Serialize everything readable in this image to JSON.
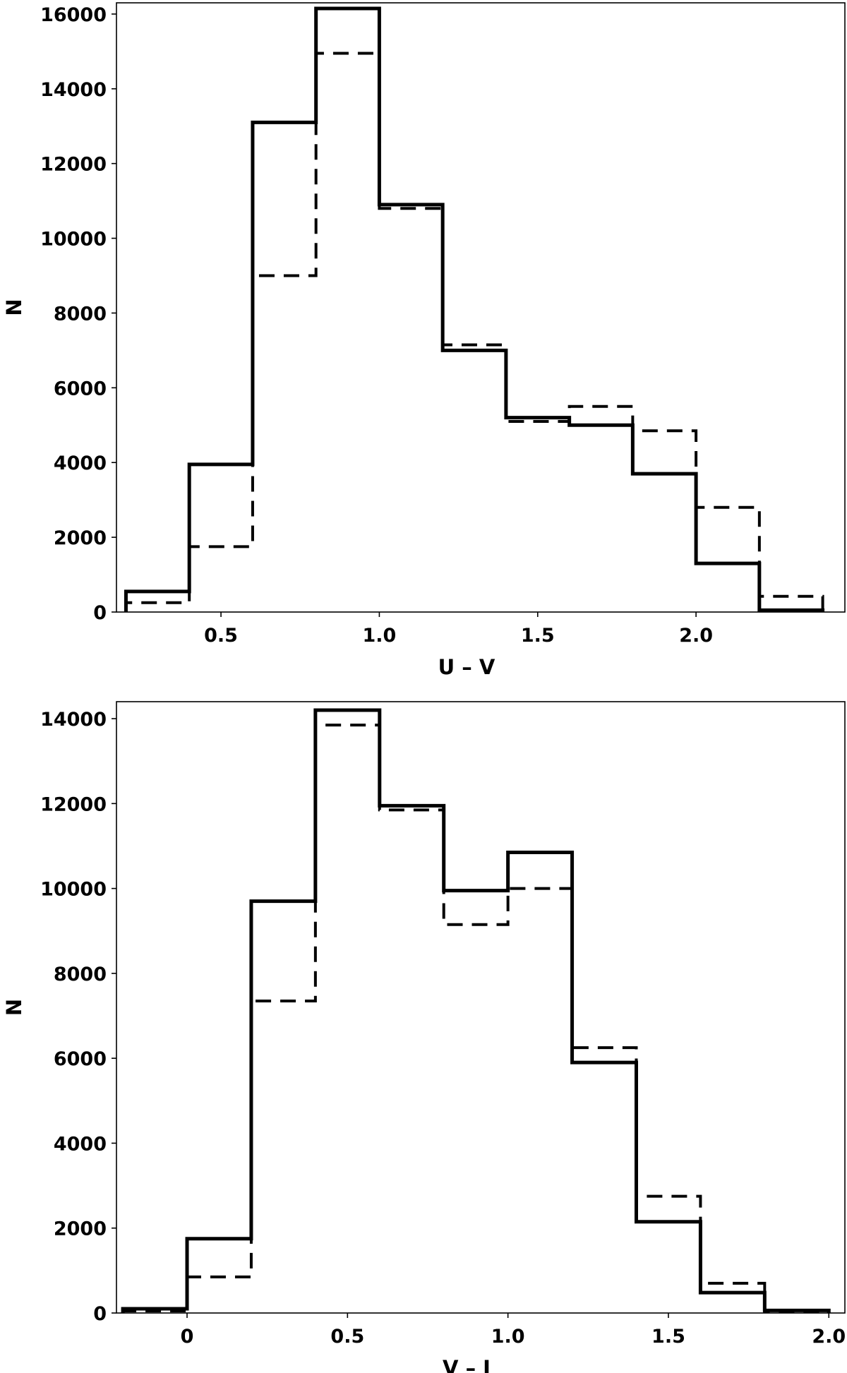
{
  "chart_data": [
    {
      "type": "histogram",
      "xlabel": "U –  V",
      "ylabel": "N",
      "xlim": [
        0.17,
        2.47
      ],
      "ylim": [
        0,
        16300
      ],
      "xticks": [
        0.5,
        1.0,
        1.5,
        2.0
      ],
      "xtick_labels": [
        "0.5",
        "1.0",
        "1.5",
        "2.0"
      ],
      "yticks": [
        0,
        2000,
        4000,
        6000,
        8000,
        10000,
        12000,
        14000,
        16000
      ],
      "ytick_labels": [
        "0",
        "2000",
        "4000",
        "6000",
        "8000",
        "10000",
        "12000",
        "14000",
        "16000"
      ],
      "bin_edges": [
        0.2,
        0.4,
        0.6,
        0.8,
        1.0,
        1.2,
        1.4,
        1.6,
        1.8,
        2.0,
        2.2,
        2.4
      ],
      "series": [
        {
          "style": "solid",
          "values": [
            550,
            3950,
            13100,
            16150,
            10900,
            7000,
            5200,
            5000,
            3700,
            1300,
            50
          ]
        },
        {
          "style": "dashed",
          "values": [
            250,
            1750,
            9000,
            14950,
            10800,
            7150,
            5100,
            5500,
            4850,
            2800,
            420
          ]
        }
      ],
      "grid": false,
      "legend": null
    },
    {
      "type": "histogram",
      "xlabel": "V –  J",
      "ylabel": "N",
      "xlim": [
        -0.22,
        2.05
      ],
      "ylim": [
        0,
        14400
      ],
      "xticks": [
        0,
        0.5,
        1.0,
        1.5,
        2.0
      ],
      "xtick_labels": [
        "0",
        "0.5",
        "1.0",
        "1.5",
        "2.0"
      ],
      "yticks": [
        0,
        2000,
        4000,
        6000,
        8000,
        10000,
        12000,
        14000
      ],
      "ytick_labels": [
        "0",
        "2000",
        "4000",
        "6000",
        "8000",
        "10000",
        "12000",
        "14000"
      ],
      "bin_edges": [
        -0.2,
        0.0,
        0.2,
        0.4,
        0.6,
        0.8,
        1.0,
        1.2,
        1.4,
        1.6,
        1.8,
        2.0
      ],
      "series": [
        {
          "style": "solid",
          "values": [
            100,
            1750,
            9700,
            14200,
            11950,
            9950,
            10850,
            5900,
            2150,
            480,
            60
          ]
        },
        {
          "style": "dashed",
          "values": [
            50,
            850,
            7350,
            13850,
            11850,
            9150,
            10000,
            6250,
            2750,
            700,
            40
          ]
        }
      ],
      "grid": false,
      "legend": null
    }
  ]
}
